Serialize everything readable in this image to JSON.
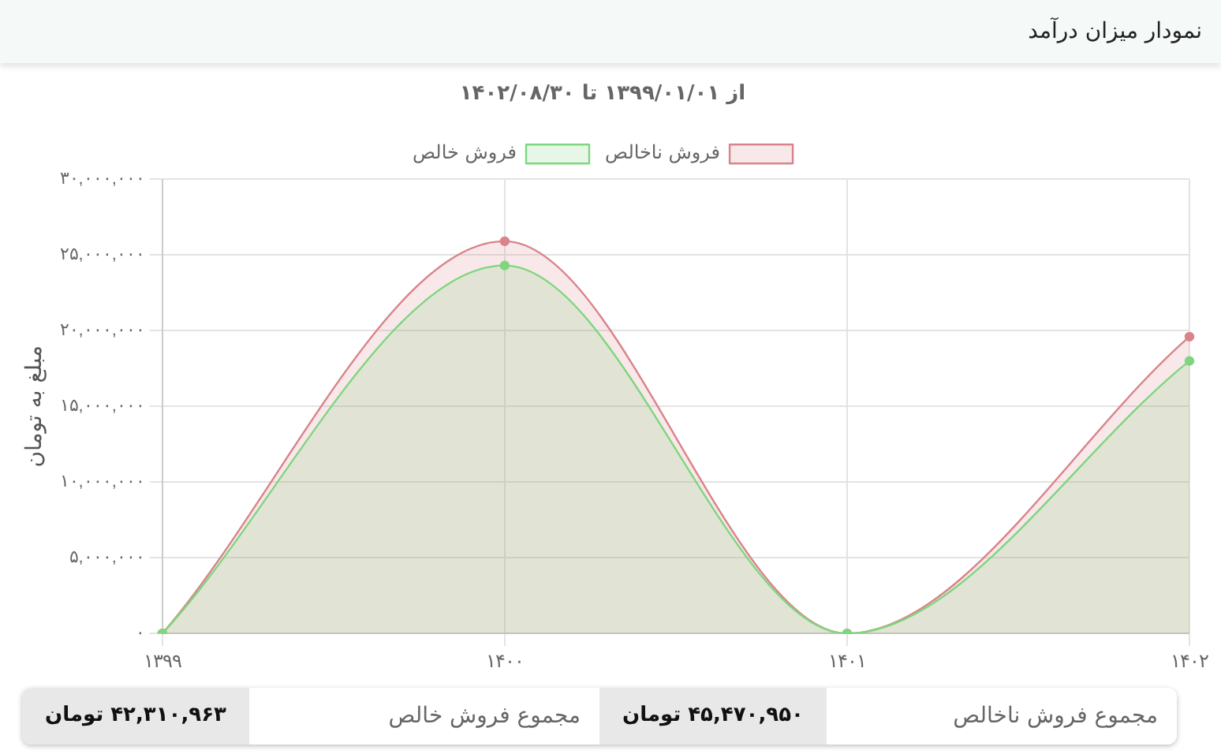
{
  "chart_data": {
    "type": "area",
    "title": "نمودار میزان درآمد",
    "subtitle": "از ۱۳۹۹/۰۱/۰۱ تا ۱۴۰۲/۰۸/۳۰",
    "ylabel": "مبلغ به تومان",
    "categories": [
      "۱۳۹۹",
      "۱۴۰۰",
      "۱۴۰۱",
      "۱۴۰۲"
    ],
    "series": [
      {
        "name": "فروش ناخالص",
        "color": "#d9838a",
        "values": [
          0,
          25900000,
          0,
          19600000
        ]
      },
      {
        "name": "فروش خالص",
        "color": "#7ed67e",
        "values": [
          0,
          24300000,
          0,
          18000000
        ]
      }
    ],
    "ylim": [
      0,
      30000000
    ],
    "yticks": [
      {
        "value": 0,
        "label": "۰"
      },
      {
        "value": 5000000,
        "label": "۵,۰۰۰,۰۰۰"
      },
      {
        "value": 10000000,
        "label": "۱۰,۰۰۰,۰۰۰"
      },
      {
        "value": 15000000,
        "label": "۱۵,۰۰۰,۰۰۰"
      },
      {
        "value": 20000000,
        "label": "۲۰,۰۰۰,۰۰۰"
      },
      {
        "value": 25000000,
        "label": "۲۵,۰۰۰,۰۰۰"
      },
      {
        "value": 30000000,
        "label": "۳۰,۰۰۰,۰۰۰"
      }
    ],
    "grid": true,
    "legend": "top",
    "marker": "circle",
    "annotations": [
      "مجموع فروش ناخالص",
      "۴۵,۴۷۰,۹۵۰ تومان",
      "مجموع فروش خالص",
      "۴۲,۳۱۰,۹۶۳ تومان"
    ]
  }
}
